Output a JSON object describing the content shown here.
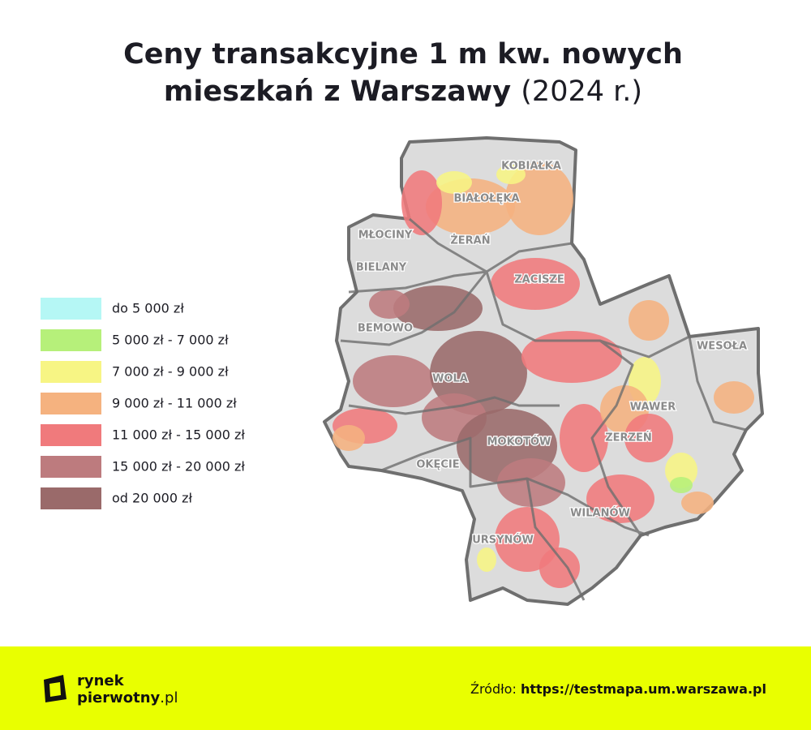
{
  "title": {
    "line1": "Ceny transakcyjne 1 m kw. nowych",
    "line2_bold": "mieszkań z Warszawy",
    "line2_rest": "(2024 r.)"
  },
  "legend": [
    {
      "label": "do 5 000 zł",
      "color": "#b5f7f5"
    },
    {
      "label": "5 000 zł - 7 000 zł",
      "color": "#b6f07a"
    },
    {
      "label": "7 000 zł - 9 000 zł",
      "color": "#f7f584"
    },
    {
      "label": "9 000 zł - 11 000 zł",
      "color": "#f5b27f"
    },
    {
      "label": "11 000 zł - 15 000 zł",
      "color": "#f07a7c"
    },
    {
      "label": "15 000 zł - 20 000 zł",
      "color": "#bd7b7e"
    },
    {
      "label": "od 20 000 zł",
      "color": "#9a6a6a"
    }
  ],
  "districts": [
    "BIAŁOŁĘKA",
    "ŻERAŃ",
    "KOBIAŁKA",
    "MŁOCINY",
    "BIELANY",
    "ZACISZE",
    "BEMOWO",
    "WOLA",
    "WESOŁA",
    "WAWER",
    "ZERZEŃ",
    "OKĘCIE",
    "MOKOTÓW",
    "WILANÓW",
    "URSYNÓW"
  ],
  "footer": {
    "logo_line1": "rynek",
    "logo_line2": "pierwotny",
    "logo_suffix": ".pl",
    "source_label": "Źródło:",
    "source_url": "https://testmapa.um.warszawa.pl"
  }
}
